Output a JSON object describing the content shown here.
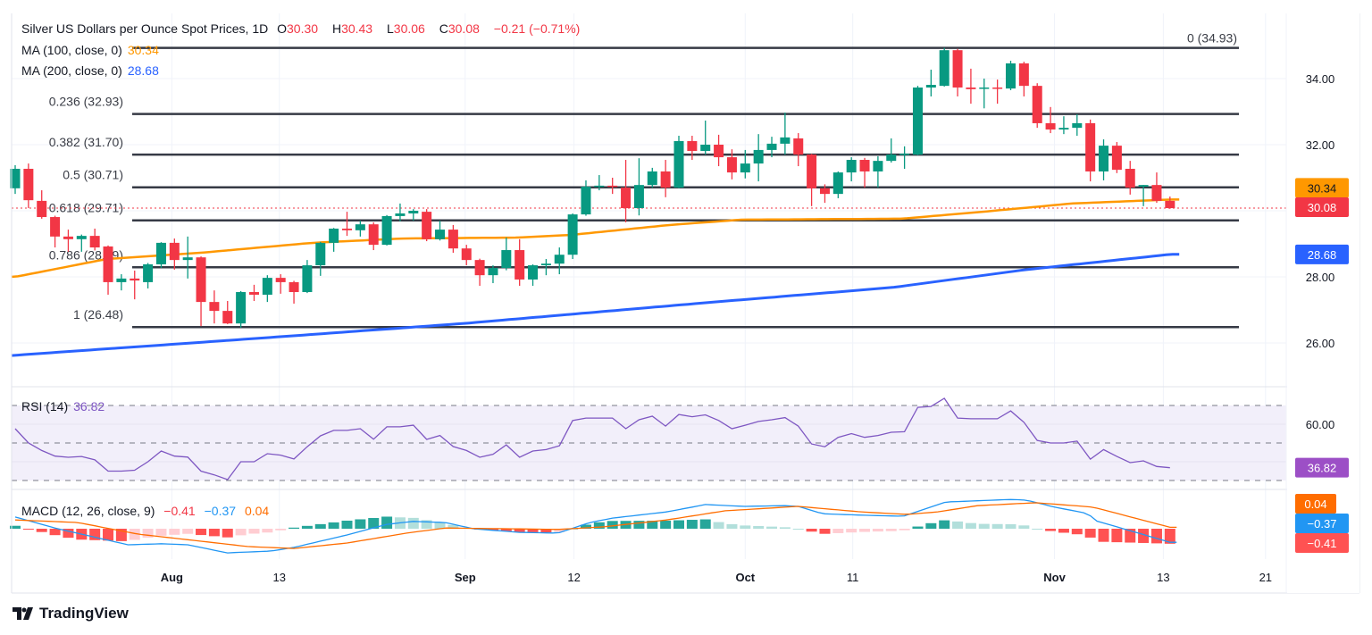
{
  "header": {
    "title": "Silver US Dollars per Ounce Spot Prices, 1D",
    "o_label": "O",
    "o": "30.30",
    "h_label": "H",
    "h": "30.43",
    "l_label": "L",
    "l": "30.06",
    "c_label": "C",
    "c": "30.08",
    "change": "−0.21 (−0.71%)",
    "ma100_label": "MA (100, close, 0)",
    "ma100_value": "30.34",
    "ma200_label": "MA (200, close, 0)",
    "ma200_value": "28.68",
    "rsi_label": "RSI (14)",
    "rsi_value": "36.82",
    "macd_label": "MACD (12, 26, close, 9)",
    "macd_hist": "−0.41",
    "macd_line": "−0.37",
    "macd_signal": "0.04"
  },
  "badges": {
    "ma100": "30.34",
    "price": "30.08",
    "ma200": "28.68",
    "rsi": "36.82",
    "signal": "0.04",
    "macd": "−0.37",
    "hist": "−0.41"
  },
  "logo": "TradingView",
  "colors": {
    "up": "#089981",
    "down": "#f23645",
    "ma100": "#ff9800",
    "ma200": "#2962ff",
    "rsi": "#7e57c2",
    "macd": "#2196f3",
    "signal": "#ff6d00",
    "hist_up_strong": "#26a69a",
    "hist_up_weak": "#b2dfdb",
    "hist_dn_strong": "#ff5252",
    "hist_dn_weak": "#ffcdd2"
  },
  "chart_data": {
    "type": "candlestick",
    "title": "Silver US Dollars per Ounce Spot Prices, 1D",
    "ylim": [
      25.3,
      35.4
    ],
    "price_ticks": [
      "34.00",
      "32.00",
      "28.00",
      "26.00"
    ],
    "price_tick_values": [
      34,
      32,
      28,
      26
    ],
    "x_ticks": [
      {
        "label": "Aug",
        "bar": 11.8
      },
      {
        "label": "13",
        "bar": 19.9
      },
      {
        "label": "Sep",
        "bar": 33.9
      },
      {
        "label": "12",
        "bar": 42.1
      },
      {
        "label": "Oct",
        "bar": 55.0
      },
      {
        "label": "11",
        "bar": 63.1
      },
      {
        "label": "Nov",
        "bar": 78.3
      },
      {
        "label": "13",
        "bar": 86.5
      },
      {
        "label": "21",
        "bar": 94.2
      }
    ],
    "ohlc": [
      [
        30.68,
        31.38,
        30.51,
        31.27
      ],
      [
        31.27,
        31.43,
        30.08,
        30.32
      ],
      [
        30.3,
        30.62,
        29.76,
        29.81
      ],
      [
        29.81,
        29.85,
        28.89,
        29.22
      ],
      [
        29.22,
        29.43,
        28.76,
        29.14
      ],
      [
        29.14,
        29.28,
        28.76,
        29.24
      ],
      [
        29.24,
        29.46,
        28.8,
        28.89
      ],
      [
        28.92,
        28.95,
        27.46,
        27.84
      ],
      [
        27.84,
        28.08,
        27.59,
        27.95
      ],
      [
        27.95,
        28.19,
        27.32,
        27.89
      ],
      [
        27.84,
        28.42,
        27.65,
        28.38
      ],
      [
        28.38,
        29.05,
        28.27,
        29.03
      ],
      [
        29.03,
        29.16,
        28.22,
        28.51
      ],
      [
        28.51,
        29.22,
        27.95,
        28.59
      ],
      [
        28.59,
        28.62,
        26.51,
        27.24
      ],
      [
        27.24,
        27.59,
        26.59,
        26.97
      ],
      [
        26.97,
        27.27,
        26.57,
        26.59
      ],
      [
        26.59,
        27.57,
        26.46,
        27.54
      ],
      [
        27.54,
        27.76,
        27.27,
        27.46
      ],
      [
        27.46,
        28.05,
        27.24,
        27.97
      ],
      [
        27.97,
        28.08,
        27.49,
        27.84
      ],
      [
        27.84,
        27.88,
        27.19,
        27.54
      ],
      [
        27.54,
        28.51,
        27.51,
        28.35
      ],
      [
        28.35,
        29.06,
        28.03,
        29.03
      ],
      [
        29.03,
        29.48,
        28.76,
        29.46
      ],
      [
        29.46,
        29.97,
        29.24,
        29.41
      ],
      [
        29.41,
        29.7,
        29.22,
        29.59
      ],
      [
        29.59,
        29.65,
        28.81,
        28.97
      ],
      [
        28.97,
        29.87,
        28.95,
        29.84
      ],
      [
        29.84,
        30.22,
        29.68,
        29.92
      ],
      [
        29.92,
        30.05,
        29.7,
        30.0
      ],
      [
        29.97,
        30.05,
        29.08,
        29.14
      ],
      [
        29.14,
        29.7,
        29.1,
        29.43
      ],
      [
        29.43,
        29.57,
        28.73,
        28.86
      ],
      [
        28.86,
        28.97,
        28.35,
        28.51
      ],
      [
        28.51,
        28.55,
        27.73,
        28.05
      ],
      [
        28.05,
        28.35,
        27.81,
        28.27
      ],
      [
        28.27,
        29.19,
        28.2,
        28.81
      ],
      [
        28.81,
        29.14,
        27.73,
        27.92
      ],
      [
        27.92,
        28.38,
        27.73,
        28.35
      ],
      [
        28.35,
        28.54,
        28.05,
        28.4
      ],
      [
        28.4,
        28.89,
        28.08,
        28.67
      ],
      [
        28.67,
        29.92,
        28.54,
        29.89
      ],
      [
        29.89,
        30.92,
        29.85,
        30.73
      ],
      [
        30.73,
        31.08,
        30.62,
        30.76
      ],
      [
        30.76,
        31.0,
        30.51,
        30.73
      ],
      [
        30.7,
        31.54,
        29.65,
        30.08
      ],
      [
        30.08,
        31.59,
        29.86,
        30.78
      ],
      [
        30.78,
        31.3,
        30.7,
        31.19
      ],
      [
        31.19,
        31.54,
        30.41,
        30.7
      ],
      [
        30.7,
        32.27,
        30.68,
        32.11
      ],
      [
        32.11,
        32.27,
        31.54,
        31.81
      ],
      [
        31.81,
        32.73,
        31.7,
        32.0
      ],
      [
        32.0,
        32.3,
        31.35,
        31.62
      ],
      [
        31.62,
        31.86,
        30.95,
        31.16
      ],
      [
        31.16,
        31.84,
        30.98,
        31.43
      ],
      [
        31.43,
        32.32,
        30.89,
        31.84
      ],
      [
        31.84,
        32.24,
        31.62,
        32.03
      ],
      [
        32.03,
        32.97,
        31.7,
        32.22
      ],
      [
        32.19,
        32.35,
        31.35,
        31.7
      ],
      [
        31.7,
        31.72,
        30.14,
        30.68
      ],
      [
        30.68,
        30.8,
        30.24,
        30.51
      ],
      [
        30.51,
        31.19,
        30.38,
        31.16
      ],
      [
        31.16,
        31.62,
        30.89,
        31.54
      ],
      [
        31.54,
        31.6,
        30.7,
        31.19
      ],
      [
        31.19,
        31.65,
        30.7,
        31.51
      ],
      [
        31.51,
        32.19,
        31.46,
        31.7
      ],
      [
        31.7,
        31.95,
        31.27,
        31.73
      ],
      [
        31.7,
        33.78,
        31.68,
        33.73
      ],
      [
        33.73,
        34.27,
        33.46,
        33.81
      ],
      [
        33.78,
        34.93,
        33.76,
        34.86
      ],
      [
        34.86,
        34.9,
        33.46,
        33.73
      ],
      [
        33.73,
        34.3,
        33.24,
        33.68
      ],
      [
        33.7,
        34.0,
        33.1,
        33.73
      ],
      [
        33.73,
        33.97,
        33.24,
        33.7
      ],
      [
        33.7,
        34.54,
        33.65,
        34.46
      ],
      [
        34.46,
        34.51,
        33.46,
        33.78
      ],
      [
        33.78,
        33.86,
        32.51,
        32.65
      ],
      [
        32.65,
        33.14,
        32.35,
        32.46
      ],
      [
        32.46,
        32.86,
        32.32,
        32.51
      ],
      [
        32.51,
        32.92,
        32.27,
        32.65
      ],
      [
        32.65,
        32.76,
        30.89,
        31.19
      ],
      [
        31.19,
        32.16,
        30.92,
        31.97
      ],
      [
        31.97,
        32.08,
        31.14,
        31.24
      ],
      [
        31.27,
        31.51,
        30.49,
        30.7
      ],
      [
        30.73,
        30.78,
        30.14,
        30.78
      ],
      [
        30.78,
        31.16,
        30.24,
        30.3
      ],
      [
        30.3,
        30.43,
        30.06,
        30.08
      ]
    ],
    "ma100_points": [
      [
        0,
        28.0
      ],
      [
        6.9,
        28.54
      ],
      [
        14,
        28.73
      ],
      [
        22.4,
        29.03
      ],
      [
        29.1,
        29.16
      ],
      [
        37.9,
        29.19
      ],
      [
        41.9,
        29.27
      ],
      [
        49.3,
        29.57
      ],
      [
        54.7,
        29.73
      ],
      [
        66.8,
        29.76
      ],
      [
        72.9,
        29.97
      ],
      [
        79.6,
        30.22
      ],
      [
        87,
        30.34
      ]
    ],
    "ma200_points": [
      [
        -1,
        25.6
      ],
      [
        19,
        26.16
      ],
      [
        33.8,
        26.59
      ],
      [
        52.7,
        27.24
      ],
      [
        66.1,
        27.68
      ],
      [
        76.2,
        28.22
      ],
      [
        87,
        28.68
      ]
    ],
    "fib_levels": [
      {
        "label": "0 (34.93)",
        "value": 34.93
      },
      {
        "label": "0.236 (32.93)",
        "value": 32.93
      },
      {
        "label": "0.382 (31.70)",
        "value": 31.7
      },
      {
        "label": "0.5 (30.71)",
        "value": 30.71
      },
      {
        "label": "0.618 (29.71)",
        "value": 29.71
      },
      {
        "label": "0.786 (28.29)",
        "value": 28.29
      },
      {
        "label": "1 (26.48)",
        "value": 26.48
      }
    ],
    "last_price": 30.08,
    "rsi": {
      "period": 14,
      "upper": 70,
      "middle": 50,
      "lower": 30,
      "ticks": [
        "60.00"
      ],
      "tick_values": [
        60
      ],
      "values": [
        57.6,
        50,
        46,
        43,
        42.4,
        42.8,
        41,
        35,
        35,
        35.5,
        40,
        45.7,
        43,
        42.5,
        35,
        33,
        30.5,
        40,
        40,
        44.3,
        43.5,
        41.5,
        48,
        53.8,
        56.7,
        56.7,
        57.6,
        52,
        58.6,
        58.6,
        59.5,
        51.9,
        54,
        48.1,
        46,
        42.4,
        44,
        49,
        42.4,
        45.7,
        46.5,
        48.5,
        62,
        63.3,
        63.3,
        63.3,
        57.6,
        62.4,
        64.3,
        59,
        65.2,
        64,
        65,
        62,
        57.6,
        59.5,
        61.5,
        62.4,
        63.5,
        59,
        49.5,
        48,
        53,
        55,
        53,
        54,
        55.7,
        56,
        69,
        69.5,
        73.8,
        63.3,
        62.9,
        62.9,
        62.9,
        67.1,
        61,
        51.4,
        50,
        50,
        51,
        41.4,
        46.5,
        42.8,
        39.5,
        40.5,
        37.5,
        36.82
      ]
    },
    "macd": {
      "macd_points": [
        [
          0,
          0.32
        ],
        [
          3.2,
          0
        ],
        [
          8.5,
          -0.44
        ],
        [
          11,
          -0.41
        ],
        [
          13,
          -0.44
        ],
        [
          16,
          -0.66
        ],
        [
          19.3,
          -0.61
        ],
        [
          21,
          -0.51
        ],
        [
          25,
          -0.17
        ],
        [
          28,
          0.12
        ],
        [
          30,
          0.2
        ],
        [
          32.4,
          0.17
        ],
        [
          34.5,
          0
        ],
        [
          38,
          -0.1
        ],
        [
          40.9,
          -0.12
        ],
        [
          43.3,
          0.17
        ],
        [
          45,
          0.29
        ],
        [
          49.1,
          0.46
        ],
        [
          52,
          0.66
        ],
        [
          54.9,
          0.61
        ],
        [
          57.9,
          0.63
        ],
        [
          59,
          0.61
        ],
        [
          60.8,
          0.41
        ],
        [
          63.7,
          0.37
        ],
        [
          66.9,
          0.34
        ],
        [
          70.1,
          0.73
        ],
        [
          75.1,
          0.8
        ],
        [
          76.2,
          0.78
        ],
        [
          78.3,
          0.59
        ],
        [
          80.9,
          0.41
        ],
        [
          81.2,
          0.24
        ],
        [
          87,
          -0.37
        ]
      ],
      "signal_points": [
        [
          0,
          0.24
        ],
        [
          4.7,
          0.17
        ],
        [
          9.3,
          -0.15
        ],
        [
          13.5,
          -0.32
        ],
        [
          17.6,
          -0.49
        ],
        [
          21,
          -0.54
        ],
        [
          25,
          -0.39
        ],
        [
          29.5,
          -0.12
        ],
        [
          32.4,
          0.02
        ],
        [
          36.8,
          0
        ],
        [
          40.9,
          -0.02
        ],
        [
          44.3,
          0.05
        ],
        [
          49.1,
          0.24
        ],
        [
          53.5,
          0.49
        ],
        [
          59,
          0.61
        ],
        [
          63.7,
          0.46
        ],
        [
          67.2,
          0.39
        ],
        [
          69.5,
          0.46
        ],
        [
          72.5,
          0.63
        ],
        [
          76.9,
          0.71
        ],
        [
          81.2,
          0.59
        ],
        [
          87,
          0.04
        ]
      ]
    }
  }
}
